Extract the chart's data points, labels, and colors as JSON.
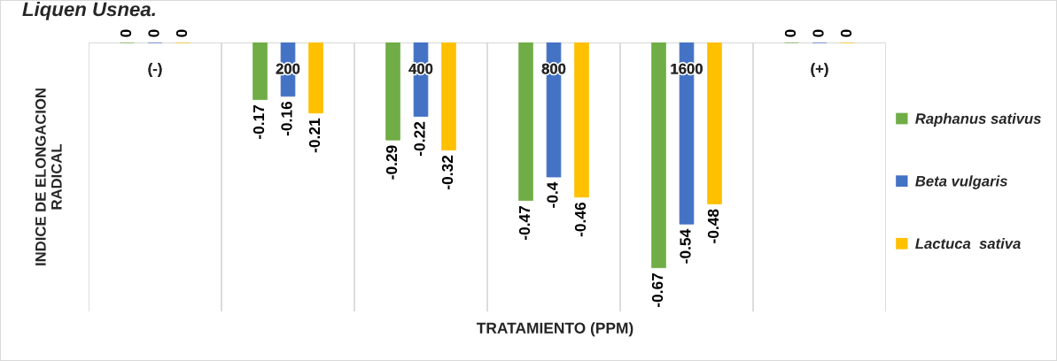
{
  "chart_data": {
    "type": "bar",
    "title": "Liquen Usnea.",
    "xlabel": "TRATAMIENTO (PPM)",
    "ylabel": "INDICE DE ELONGACION\nRADICAL",
    "categories": [
      "(-)",
      "200",
      "400",
      "800",
      "1600",
      "(+)"
    ],
    "series": [
      {
        "name": "Raphanus sativus",
        "color": "#70ad47",
        "values": [
          0,
          -0.17,
          -0.29,
          -0.47,
          -0.67,
          0
        ]
      },
      {
        "name": "Beta vulgaris",
        "color": "#4472c4",
        "values": [
          0,
          -0.16,
          -0.22,
          -0.4,
          -0.54,
          0
        ]
      },
      {
        "name": "Lactuca  sativa",
        "color": "#ffc000",
        "values": [
          0,
          -0.21,
          -0.32,
          -0.46,
          -0.48,
          0
        ]
      }
    ],
    "ylim": [
      -0.8,
      0
    ],
    "data_labels": true,
    "grid": "x",
    "legend": "right",
    "tick_labels": "x"
  }
}
